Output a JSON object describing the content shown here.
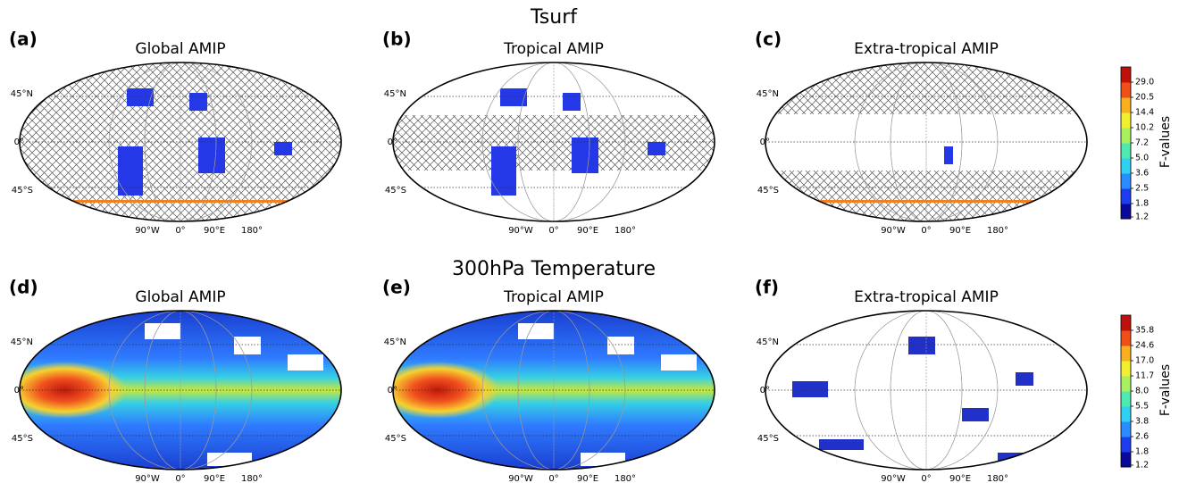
{
  "figure": {
    "rows": [
      {
        "title": "Tsurf",
        "panels": [
          {
            "label": "(a)",
            "title": "Global AMIP"
          },
          {
            "label": "(b)",
            "title": "Tropical AMIP"
          },
          {
            "label": "(c)",
            "title": "Extra-tropical AMIP"
          }
        ],
        "colorbar": {
          "label": "F-values",
          "ticks": [
            1.2,
            1.8,
            2.5,
            3.6,
            {
              "value": 5,
              "label": "5.0"
            },
            7.2,
            10.2,
            14.4,
            20.5,
            {
              "value": 29,
              "label": "29.0"
            }
          ]
        }
      },
      {
        "title": "300hPa Temperature",
        "panels": [
          {
            "label": "(d)",
            "title": "Global AMIP"
          },
          {
            "label": "(e)",
            "title": "Tropical AMIP"
          },
          {
            "label": "(f)",
            "title": "Extra-tropical AMIP"
          }
        ],
        "colorbar": {
          "label": "F-values",
          "ticks": [
            1.2,
            1.8,
            2.6,
            3.8,
            5.5,
            {
              "value": 8,
              "label": "8.0"
            },
            11.7,
            {
              "value": 17,
              "label": "17.0"
            },
            24.6,
            35.8
          ]
        }
      }
    ],
    "lat_labels": [
      "45°N",
      "0°",
      "45°S"
    ],
    "lon_labels": [
      "90°W",
      "0°",
      "90°E",
      "180°"
    ]
  }
}
